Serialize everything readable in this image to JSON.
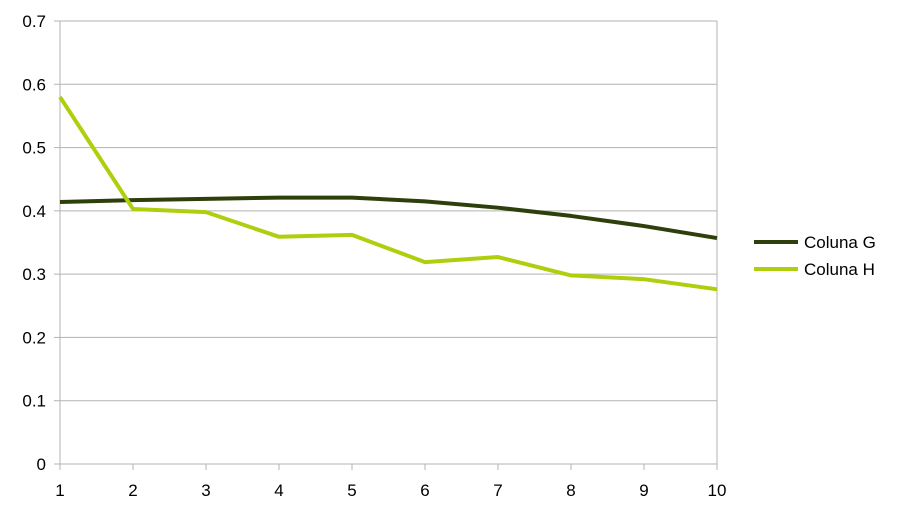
{
  "chart_data": {
    "type": "line",
    "x": [
      1,
      2,
      3,
      4,
      5,
      6,
      7,
      8,
      9,
      10
    ],
    "series": [
      {
        "name": "Coluna G",
        "color": "#2d3f0b",
        "values": [
          0.414,
          0.417,
          0.419,
          0.421,
          0.421,
          0.415,
          0.405,
          0.392,
          0.376,
          0.357
        ]
      },
      {
        "name": "Coluna H",
        "color": "#aecf0e",
        "values": [
          0.58,
          0.403,
          0.398,
          0.359,
          0.362,
          0.319,
          0.327,
          0.298,
          0.292,
          0.276
        ]
      }
    ],
    "title": "",
    "xlabel": "",
    "ylabel": "",
    "ylim": [
      0,
      0.7
    ],
    "yticks": [
      "0",
      "0.1",
      "0.2",
      "0.3",
      "0.4",
      "0.5",
      "0.6",
      "0.7"
    ],
    "xticks": [
      "1",
      "2",
      "3",
      "4",
      "5",
      "6",
      "7",
      "8",
      "9",
      "10"
    ],
    "grid": "horizontal",
    "legend_position": "right"
  }
}
